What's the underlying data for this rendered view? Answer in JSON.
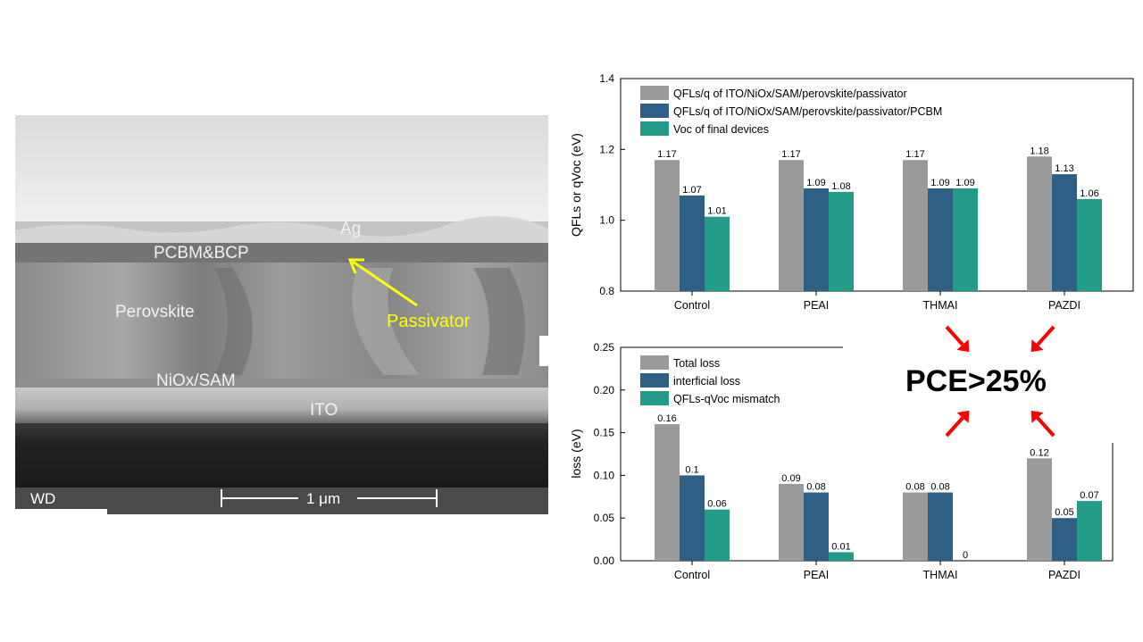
{
  "sem": {
    "labels": {
      "ag": "Ag",
      "pcbm": "PCBM&BCP",
      "perovskite": "Perovskite",
      "passivator": "Passivator",
      "niox": "NiOx/SAM",
      "ito": "ITO"
    },
    "scale_bar": {
      "wd": "WD",
      "length": "1 μm"
    }
  },
  "highlight": {
    "text": "PCE>25%",
    "arrow_color": "#ff0000"
  },
  "colors": {
    "gray": "#9a9a9a",
    "blue": "#2e6086",
    "teal": "#229b89"
  },
  "chart_data": [
    {
      "type": "bar",
      "categories": [
        "Control",
        "PEAI",
        "THMAI",
        "PAZDI"
      ],
      "ylabel": "QFLs or qVoc (eV)",
      "ylim": [
        0.8,
        1.4
      ],
      "yticks": [
        "0.8",
        "1.0",
        "1.2",
        "1.4"
      ],
      "legend_position": "top-left",
      "series": [
        {
          "name": "QFLs/q of ITO/NiOx/SAM/perovskite/passivator",
          "values": [
            1.17,
            1.17,
            1.17,
            1.18
          ],
          "labels": [
            "1.17",
            "1.17",
            "1.17",
            "1.18"
          ],
          "color": "#9a9a9a"
        },
        {
          "name": "QFLs/q of ITO/NiOx/SAM/perovskite/passivator/PCBM",
          "values": [
            1.07,
            1.09,
            1.09,
            1.13
          ],
          "labels": [
            "1.07",
            "1.09",
            "1.09",
            "1.13"
          ],
          "color": "#2e6086"
        },
        {
          "name": "Voc of final devices",
          "values": [
            1.01,
            1.08,
            1.09,
            1.06
          ],
          "labels": [
            "1.01",
            "1.08",
            "1.09",
            "1.06"
          ],
          "color": "#229b89"
        }
      ]
    },
    {
      "type": "bar",
      "categories": [
        "Control",
        "PEAI",
        "THMAI",
        "PAZDI"
      ],
      "ylabel": "loss (eV)",
      "ylim": [
        0,
        0.25
      ],
      "yticks": [
        "0.00",
        "0.05",
        "0.10",
        "0.15",
        "0.20",
        "0.25"
      ],
      "legend_position": "top-left",
      "series": [
        {
          "name": "Total loss",
          "values": [
            0.16,
            0.09,
            0.08,
            0.12
          ],
          "labels": [
            "0.16",
            "0.09",
            "0.08",
            "0.12"
          ],
          "color": "#9a9a9a"
        },
        {
          "name": "interficial loss",
          "values": [
            0.1,
            0.08,
            0.08,
            0.05
          ],
          "labels": [
            "0.1",
            "0.08",
            "0.08",
            "0.05"
          ],
          "color": "#2e6086"
        },
        {
          "name": "QFLs-qVoc mismatch",
          "values": [
            0.06,
            0.01,
            0,
            0.07
          ],
          "labels": [
            "0.06",
            "0.01",
            "0",
            "0.07"
          ],
          "color": "#229b89"
        }
      ]
    }
  ]
}
